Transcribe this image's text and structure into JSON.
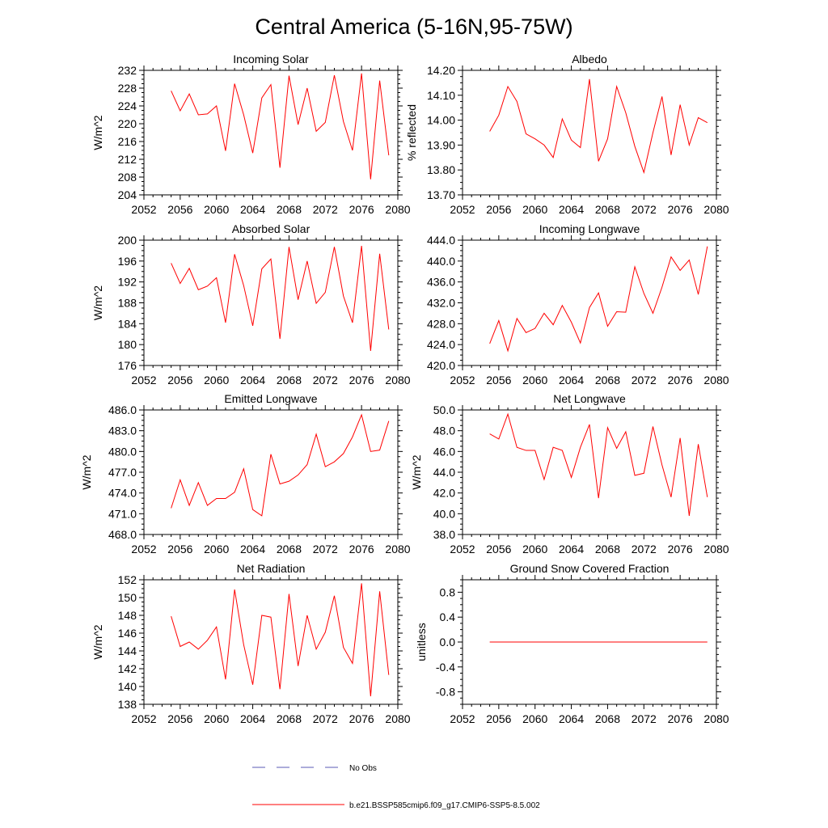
{
  "figure": {
    "title": "Central America (5-16N,95-75W)"
  },
  "legend": {
    "items": [
      {
        "label": "No Obs",
        "color": "#5a5ab4",
        "dash": true
      },
      {
        "label": "b.e21.BSSP585cmip6.f09_g17.CMIP6-SSP5-8.5.002",
        "color": "#ff0000",
        "dash": false
      }
    ]
  },
  "colors": {
    "series": "#ff0000",
    "obs": "#5a5ab4"
  },
  "chart_data": [
    {
      "type": "line",
      "title": "Incoming Solar",
      "ylabel": "W/m^2",
      "xlim": [
        2052,
        2080
      ],
      "xticks": [
        2052,
        2056,
        2060,
        2064,
        2068,
        2072,
        2076,
        2080
      ],
      "ylim": [
        204,
        232
      ],
      "yticks": [
        204,
        208,
        212,
        216,
        220,
        224,
        228,
        232
      ],
      "tick_decimals": 0,
      "series": [
        {
          "x": [
            2055,
            2056,
            2057,
            2058,
            2059,
            2060,
            2061,
            2062,
            2063,
            2064,
            2065,
            2066,
            2067,
            2068,
            2069,
            2070,
            2071,
            2072,
            2073,
            2074,
            2075,
            2076,
            2077,
            2078,
            2079
          ],
          "values": [
            227.4,
            222.9,
            226.7,
            222.0,
            222.2,
            224.0,
            213.9,
            229.0,
            222.0,
            213.4,
            225.8,
            228.8,
            210.1,
            230.8,
            219.8,
            228.0,
            218.3,
            220.3,
            230.9,
            220.5,
            214.0,
            231.3,
            207.5,
            229.7,
            212.9
          ]
        }
      ]
    },
    {
      "type": "line",
      "title": "Albedo",
      "ylabel": "% reflected",
      "xlim": [
        2052,
        2080
      ],
      "xticks": [
        2052,
        2056,
        2060,
        2064,
        2068,
        2072,
        2076,
        2080
      ],
      "ylim": [
        13.7,
        14.2
      ],
      "yticks": [
        13.7,
        13.8,
        13.9,
        14.0,
        14.1,
        14.2
      ],
      "tick_decimals": 2,
      "series": [
        {
          "x": [
            2055,
            2056,
            2057,
            2058,
            2059,
            2060,
            2061,
            2062,
            2063,
            2064,
            2065,
            2066,
            2067,
            2068,
            2069,
            2070,
            2071,
            2072,
            2073,
            2074,
            2075,
            2076,
            2077,
            2078,
            2079
          ],
          "values": [
            13.955,
            14.02,
            14.135,
            14.075,
            13.945,
            13.925,
            13.9,
            13.85,
            14.005,
            13.92,
            13.89,
            14.165,
            13.835,
            13.925,
            14.135,
            14.03,
            13.895,
            13.79,
            13.95,
            14.095,
            13.86,
            14.062,
            13.9,
            14.01,
            13.99
          ]
        }
      ]
    },
    {
      "type": "line",
      "title": "Absorbed Solar",
      "ylabel": "W/m^2",
      "xlim": [
        2052,
        2080
      ],
      "xticks": [
        2052,
        2056,
        2060,
        2064,
        2068,
        2072,
        2076,
        2080
      ],
      "ylim": [
        176,
        200
      ],
      "yticks": [
        176,
        180,
        184,
        188,
        192,
        196,
        200
      ],
      "tick_decimals": 0,
      "series": [
        {
          "x": [
            2055,
            2056,
            2057,
            2058,
            2059,
            2060,
            2061,
            2062,
            2063,
            2064,
            2065,
            2066,
            2067,
            2068,
            2069,
            2070,
            2071,
            2072,
            2073,
            2074,
            2075,
            2076,
            2077,
            2078,
            2079
          ],
          "values": [
            195.6,
            191.7,
            194.6,
            190.5,
            191.2,
            192.8,
            184.2,
            197.3,
            191.3,
            183.6,
            194.5,
            196.4,
            181.1,
            198.7,
            188.6,
            196.0,
            187.9,
            190.0,
            198.7,
            189.3,
            184.2,
            198.9,
            178.8,
            197.4,
            182.9
          ]
        }
      ]
    },
    {
      "type": "line",
      "title": "Incoming Longwave",
      "ylabel": "",
      "xlim": [
        2052,
        2080
      ],
      "xticks": [
        2052,
        2056,
        2060,
        2064,
        2068,
        2072,
        2076,
        2080
      ],
      "ylim": [
        420,
        444
      ],
      "yticks": [
        420,
        424,
        428,
        432,
        436,
        440,
        444
      ],
      "tick_decimals": 1,
      "series": [
        {
          "x": [
            2055,
            2056,
            2057,
            2058,
            2059,
            2060,
            2061,
            2062,
            2063,
            2064,
            2065,
            2066,
            2067,
            2068,
            2069,
            2070,
            2071,
            2072,
            2073,
            2074,
            2075,
            2076,
            2077,
            2078,
            2079
          ],
          "values": [
            424.2,
            428.6,
            422.8,
            429.0,
            426.3,
            427.1,
            430.0,
            427.8,
            431.5,
            428.3,
            424.3,
            431.1,
            433.9,
            427.5,
            430.3,
            430.2,
            438.9,
            433.8,
            430.0,
            435.0,
            440.8,
            438.2,
            440.2,
            433.6,
            442.8
          ]
        }
      ]
    },
    {
      "type": "line",
      "title": "Emitted Longwave",
      "ylabel": "W/m^2",
      "xlim": [
        2052,
        2080
      ],
      "xticks": [
        2052,
        2056,
        2060,
        2064,
        2068,
        2072,
        2076,
        2080
      ],
      "ylim": [
        468,
        486
      ],
      "yticks": [
        468,
        471,
        474,
        477,
        480,
        483,
        486
      ],
      "tick_decimals": 1,
      "series": [
        {
          "x": [
            2055,
            2056,
            2057,
            2058,
            2059,
            2060,
            2061,
            2062,
            2063,
            2064,
            2065,
            2066,
            2067,
            2068,
            2069,
            2070,
            2071,
            2072,
            2073,
            2074,
            2075,
            2076,
            2077,
            2078,
            2079
          ],
          "values": [
            471.8,
            475.9,
            472.2,
            475.5,
            472.2,
            473.2,
            473.2,
            474.1,
            477.5,
            471.6,
            470.7,
            479.6,
            475.3,
            475.7,
            476.6,
            478.1,
            482.5,
            477.8,
            478.5,
            479.7,
            482.1,
            485.3,
            480.0,
            480.2,
            484.4
          ]
        }
      ]
    },
    {
      "type": "line",
      "title": "Net Longwave",
      "ylabel": "W/m^2",
      "xlim": [
        2052,
        2080
      ],
      "xticks": [
        2052,
        2056,
        2060,
        2064,
        2068,
        2072,
        2076,
        2080
      ],
      "ylim": [
        38,
        50
      ],
      "yticks": [
        38,
        40,
        42,
        44,
        46,
        48,
        50
      ],
      "tick_decimals": 1,
      "series": [
        {
          "x": [
            2055,
            2056,
            2057,
            2058,
            2059,
            2060,
            2061,
            2062,
            2063,
            2064,
            2065,
            2066,
            2067,
            2068,
            2069,
            2070,
            2071,
            2072,
            2073,
            2074,
            2075,
            2076,
            2077,
            2078,
            2079
          ],
          "values": [
            47.7,
            47.2,
            49.6,
            46.4,
            46.1,
            46.1,
            43.3,
            46.4,
            46.1,
            43.5,
            46.4,
            48.6,
            41.5,
            48.3,
            46.3,
            47.9,
            43.7,
            43.9,
            48.4,
            44.7,
            41.6,
            47.3,
            39.8,
            46.7,
            41.6
          ]
        }
      ]
    },
    {
      "type": "line",
      "title": "Net Radiation",
      "ylabel": "W/m^2",
      "xlim": [
        2052,
        2080
      ],
      "xticks": [
        2052,
        2056,
        2060,
        2064,
        2068,
        2072,
        2076,
        2080
      ],
      "ylim": [
        138,
        152
      ],
      "yticks": [
        138,
        140,
        142,
        144,
        146,
        148,
        150,
        152
      ],
      "tick_decimals": 0,
      "series": [
        {
          "x": [
            2055,
            2056,
            2057,
            2058,
            2059,
            2060,
            2061,
            2062,
            2063,
            2064,
            2065,
            2066,
            2067,
            2068,
            2069,
            2070,
            2071,
            2072,
            2073,
            2074,
            2075,
            2076,
            2077,
            2078,
            2079
          ],
          "values": [
            147.9,
            144.5,
            145.0,
            144.2,
            145.2,
            146.7,
            140.8,
            150.9,
            144.7,
            140.2,
            148.0,
            147.8,
            139.7,
            150.4,
            142.3,
            148.0,
            144.2,
            146.1,
            150.2,
            144.4,
            142.6,
            151.6,
            138.9,
            150.7,
            141.3
          ]
        }
      ]
    },
    {
      "type": "line",
      "title": "Ground Snow Covered Fraction",
      "ylabel": "unitless",
      "xlim": [
        2052,
        2080
      ],
      "xticks": [
        2052,
        2056,
        2060,
        2064,
        2068,
        2072,
        2076,
        2080
      ],
      "ylim": [
        -1.0,
        1.0
      ],
      "yticks": [
        -0.8,
        -0.4,
        0.0,
        0.4,
        0.8
      ],
      "tick_decimals": 1,
      "series": [
        {
          "x": [
            2055,
            2056,
            2057,
            2058,
            2059,
            2060,
            2061,
            2062,
            2063,
            2064,
            2065,
            2066,
            2067,
            2068,
            2069,
            2070,
            2071,
            2072,
            2073,
            2074,
            2075,
            2076,
            2077,
            2078,
            2079
          ],
          "values": [
            0,
            0,
            0,
            0,
            0,
            0,
            0,
            0,
            0,
            0,
            0,
            0,
            0,
            0,
            0,
            0,
            0,
            0,
            0,
            0,
            0,
            0,
            0,
            0,
            0
          ]
        }
      ]
    }
  ]
}
